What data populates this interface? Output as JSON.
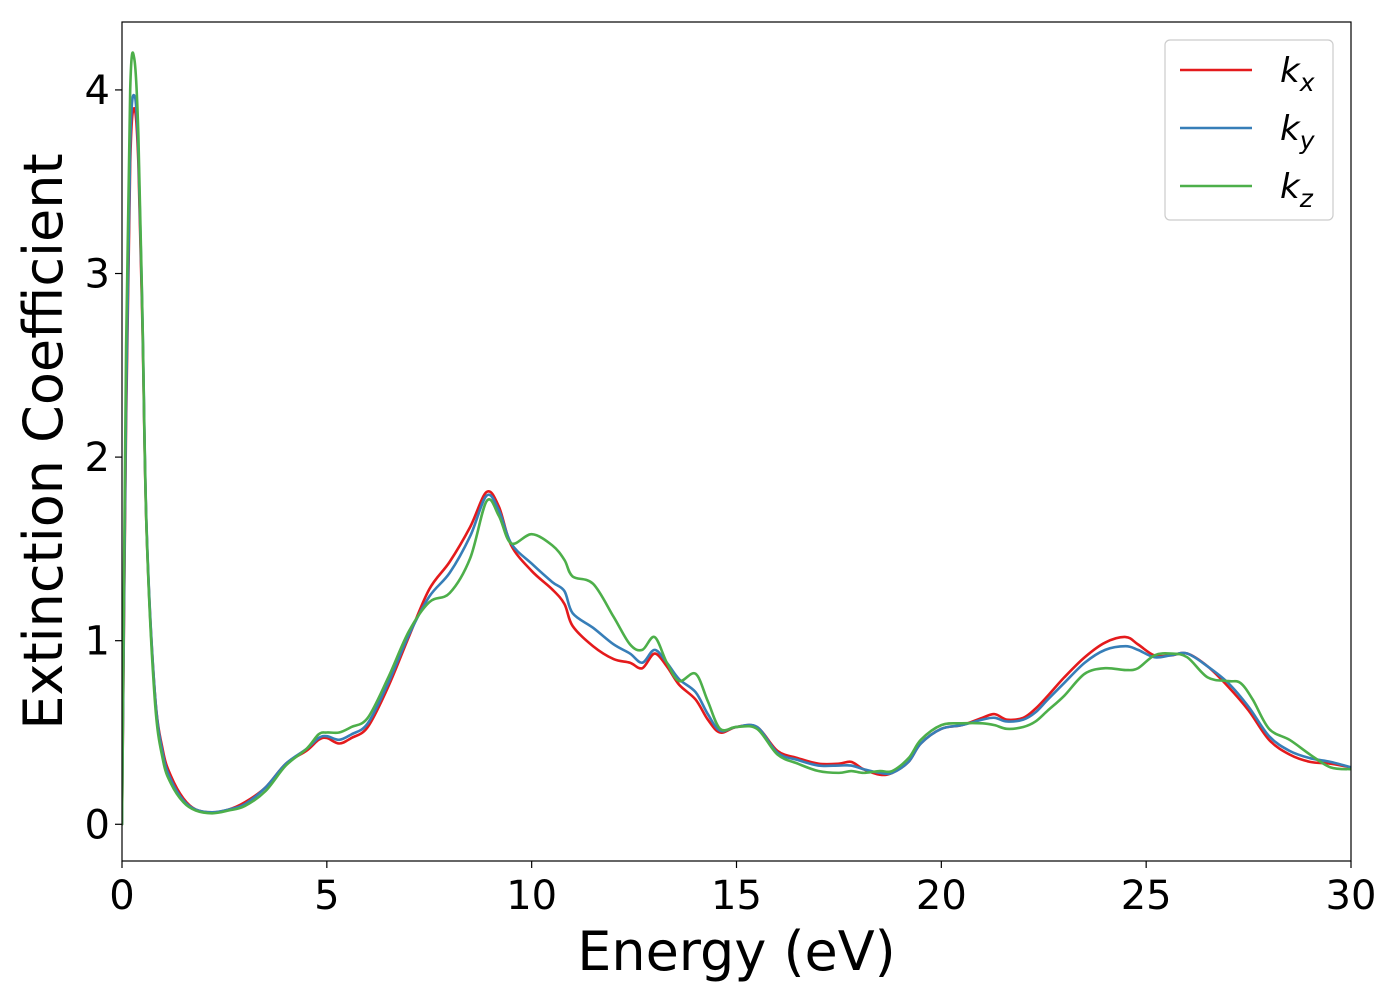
{
  "chart_data": {
    "type": "line",
    "xlabel": "Energy (eV)",
    "ylabel": "Extinction Coefficient",
    "xlim": [
      0,
      30
    ],
    "ylim": [
      -0.2,
      4.37
    ],
    "xticks": [
      0,
      5,
      10,
      15,
      20,
      25,
      30
    ],
    "yticks": [
      0,
      1,
      2,
      3,
      4
    ],
    "grid": false,
    "legend_position": "top-right",
    "series": [
      {
        "name": "k_x",
        "label_base": "k",
        "label_sub": "x",
        "color": "#e41a1c",
        "points": [
          [
            0,
            0
          ],
          [
            0.1,
            2.2
          ],
          [
            0.2,
            3.6
          ],
          [
            0.3,
            3.9
          ],
          [
            0.4,
            3.6
          ],
          [
            0.5,
            2.7
          ],
          [
            0.6,
            1.6
          ],
          [
            0.8,
            0.72
          ],
          [
            1.0,
            0.4
          ],
          [
            1.2,
            0.26
          ],
          [
            1.5,
            0.14
          ],
          [
            1.8,
            0.08
          ],
          [
            2.2,
            0.065
          ],
          [
            2.6,
            0.08
          ],
          [
            3.0,
            0.12
          ],
          [
            3.5,
            0.2
          ],
          [
            4.0,
            0.33
          ],
          [
            4.5,
            0.4
          ],
          [
            4.8,
            0.46
          ],
          [
            5.0,
            0.47
          ],
          [
            5.3,
            0.44
          ],
          [
            5.6,
            0.47
          ],
          [
            6.0,
            0.53
          ],
          [
            6.5,
            0.75
          ],
          [
            7.0,
            1.02
          ],
          [
            7.5,
            1.28
          ],
          [
            8.0,
            1.43
          ],
          [
            8.5,
            1.62
          ],
          [
            8.9,
            1.81
          ],
          [
            9.2,
            1.73
          ],
          [
            9.5,
            1.52
          ],
          [
            10.0,
            1.38
          ],
          [
            10.5,
            1.28
          ],
          [
            10.8,
            1.2
          ],
          [
            11.0,
            1.08
          ],
          [
            11.5,
            0.97
          ],
          [
            12.0,
            0.9
          ],
          [
            12.4,
            0.88
          ],
          [
            12.7,
            0.85
          ],
          [
            13.0,
            0.93
          ],
          [
            13.3,
            0.86
          ],
          [
            13.6,
            0.76
          ],
          [
            14.0,
            0.68
          ],
          [
            14.3,
            0.57
          ],
          [
            14.6,
            0.5
          ],
          [
            15.0,
            0.53
          ],
          [
            15.5,
            0.53
          ],
          [
            16.0,
            0.4
          ],
          [
            16.5,
            0.36
          ],
          [
            17.0,
            0.33
          ],
          [
            17.5,
            0.33
          ],
          [
            17.8,
            0.34
          ],
          [
            18.1,
            0.3
          ],
          [
            18.5,
            0.27
          ],
          [
            18.8,
            0.28
          ],
          [
            19.2,
            0.34
          ],
          [
            19.5,
            0.44
          ],
          [
            20.0,
            0.52
          ],
          [
            20.5,
            0.54
          ],
          [
            21.0,
            0.58
          ],
          [
            21.3,
            0.6
          ],
          [
            21.6,
            0.57
          ],
          [
            22.0,
            0.58
          ],
          [
            22.3,
            0.63
          ],
          [
            22.6,
            0.7
          ],
          [
            23.0,
            0.8
          ],
          [
            23.5,
            0.91
          ],
          [
            24.0,
            0.99
          ],
          [
            24.5,
            1.02
          ],
          [
            24.8,
            0.98
          ],
          [
            25.2,
            0.92
          ],
          [
            25.6,
            0.92
          ],
          [
            26.0,
            0.93
          ],
          [
            26.5,
            0.86
          ],
          [
            27.0,
            0.75
          ],
          [
            27.5,
            0.62
          ],
          [
            28.0,
            0.46
          ],
          [
            28.5,
            0.38
          ],
          [
            29.0,
            0.34
          ],
          [
            29.5,
            0.33
          ],
          [
            30.0,
            0.31
          ]
        ]
      },
      {
        "name": "k_y",
        "label_base": "k",
        "label_sub": "y",
        "color": "#377eb8",
        "points": [
          [
            0,
            0
          ],
          [
            0.1,
            2.3
          ],
          [
            0.2,
            3.7
          ],
          [
            0.3,
            3.97
          ],
          [
            0.4,
            3.66
          ],
          [
            0.5,
            2.75
          ],
          [
            0.6,
            1.62
          ],
          [
            0.8,
            0.72
          ],
          [
            1.0,
            0.38
          ],
          [
            1.2,
            0.24
          ],
          [
            1.5,
            0.13
          ],
          [
            1.8,
            0.08
          ],
          [
            2.2,
            0.065
          ],
          [
            2.6,
            0.08
          ],
          [
            3.0,
            0.11
          ],
          [
            3.5,
            0.2
          ],
          [
            4.0,
            0.33
          ],
          [
            4.5,
            0.41
          ],
          [
            4.8,
            0.47
          ],
          [
            5.0,
            0.48
          ],
          [
            5.3,
            0.46
          ],
          [
            5.6,
            0.49
          ],
          [
            6.0,
            0.55
          ],
          [
            6.5,
            0.77
          ],
          [
            7.0,
            1.03
          ],
          [
            7.5,
            1.24
          ],
          [
            8.0,
            1.37
          ],
          [
            8.5,
            1.57
          ],
          [
            8.9,
            1.79
          ],
          [
            9.2,
            1.71
          ],
          [
            9.5,
            1.53
          ],
          [
            10.0,
            1.42
          ],
          [
            10.5,
            1.32
          ],
          [
            10.8,
            1.27
          ],
          [
            11.0,
            1.15
          ],
          [
            11.5,
            1.07
          ],
          [
            12.0,
            0.98
          ],
          [
            12.4,
            0.93
          ],
          [
            12.7,
            0.88
          ],
          [
            13.0,
            0.95
          ],
          [
            13.3,
            0.88
          ],
          [
            13.6,
            0.79
          ],
          [
            14.0,
            0.72
          ],
          [
            14.3,
            0.6
          ],
          [
            14.6,
            0.51
          ],
          [
            15.0,
            0.53
          ],
          [
            15.5,
            0.53
          ],
          [
            16.0,
            0.39
          ],
          [
            16.5,
            0.35
          ],
          [
            17.0,
            0.32
          ],
          [
            17.5,
            0.32
          ],
          [
            17.8,
            0.32
          ],
          [
            18.1,
            0.3
          ],
          [
            18.5,
            0.28
          ],
          [
            18.8,
            0.28
          ],
          [
            19.2,
            0.34
          ],
          [
            19.5,
            0.44
          ],
          [
            20.0,
            0.52
          ],
          [
            20.5,
            0.54
          ],
          [
            21.0,
            0.57
          ],
          [
            21.3,
            0.58
          ],
          [
            21.6,
            0.56
          ],
          [
            22.0,
            0.57
          ],
          [
            22.3,
            0.61
          ],
          [
            22.6,
            0.68
          ],
          [
            23.0,
            0.77
          ],
          [
            23.5,
            0.88
          ],
          [
            24.0,
            0.95
          ],
          [
            24.5,
            0.97
          ],
          [
            24.8,
            0.95
          ],
          [
            25.2,
            0.91
          ],
          [
            25.6,
            0.92
          ],
          [
            26.0,
            0.93
          ],
          [
            26.5,
            0.86
          ],
          [
            27.0,
            0.77
          ],
          [
            27.5,
            0.64
          ],
          [
            28.0,
            0.48
          ],
          [
            28.5,
            0.4
          ],
          [
            29.0,
            0.36
          ],
          [
            29.5,
            0.34
          ],
          [
            30.0,
            0.31
          ]
        ]
      },
      {
        "name": "k_z",
        "label_base": "k",
        "label_sub": "z",
        "color": "#4daf4a",
        "points": [
          [
            0,
            0
          ],
          [
            0.1,
            2.6
          ],
          [
            0.2,
            4.0
          ],
          [
            0.3,
            4.17
          ],
          [
            0.4,
            3.75
          ],
          [
            0.5,
            2.75
          ],
          [
            0.6,
            1.6
          ],
          [
            0.8,
            0.68
          ],
          [
            1.0,
            0.35
          ],
          [
            1.2,
            0.22
          ],
          [
            1.5,
            0.12
          ],
          [
            1.8,
            0.075
          ],
          [
            2.2,
            0.06
          ],
          [
            2.6,
            0.075
          ],
          [
            3.0,
            0.1
          ],
          [
            3.5,
            0.18
          ],
          [
            4.0,
            0.32
          ],
          [
            4.5,
            0.41
          ],
          [
            4.8,
            0.49
          ],
          [
            5.0,
            0.5
          ],
          [
            5.3,
            0.5
          ],
          [
            5.6,
            0.53
          ],
          [
            6.0,
            0.58
          ],
          [
            6.5,
            0.8
          ],
          [
            7.0,
            1.05
          ],
          [
            7.5,
            1.21
          ],
          [
            8.0,
            1.26
          ],
          [
            8.5,
            1.45
          ],
          [
            8.9,
            1.76
          ],
          [
            9.2,
            1.68
          ],
          [
            9.5,
            1.53
          ],
          [
            10.0,
            1.58
          ],
          [
            10.5,
            1.52
          ],
          [
            10.8,
            1.44
          ],
          [
            11.0,
            1.35
          ],
          [
            11.5,
            1.31
          ],
          [
            12.0,
            1.13
          ],
          [
            12.4,
            0.98
          ],
          [
            12.7,
            0.95
          ],
          [
            13.0,
            1.02
          ],
          [
            13.3,
            0.88
          ],
          [
            13.6,
            0.78
          ],
          [
            14.0,
            0.82
          ],
          [
            14.3,
            0.67
          ],
          [
            14.6,
            0.52
          ],
          [
            15.0,
            0.53
          ],
          [
            15.5,
            0.52
          ],
          [
            16.0,
            0.38
          ],
          [
            16.5,
            0.33
          ],
          [
            17.0,
            0.29
          ],
          [
            17.5,
            0.28
          ],
          [
            17.8,
            0.29
          ],
          [
            18.1,
            0.28
          ],
          [
            18.5,
            0.29
          ],
          [
            18.8,
            0.29
          ],
          [
            19.2,
            0.36
          ],
          [
            19.5,
            0.46
          ],
          [
            20.0,
            0.54
          ],
          [
            20.5,
            0.55
          ],
          [
            21.0,
            0.55
          ],
          [
            21.3,
            0.54
          ],
          [
            21.6,
            0.52
          ],
          [
            22.0,
            0.53
          ],
          [
            22.3,
            0.56
          ],
          [
            22.6,
            0.62
          ],
          [
            23.0,
            0.7
          ],
          [
            23.5,
            0.82
          ],
          [
            24.0,
            0.85
          ],
          [
            24.5,
            0.84
          ],
          [
            24.8,
            0.85
          ],
          [
            25.2,
            0.92
          ],
          [
            25.6,
            0.93
          ],
          [
            26.0,
            0.91
          ],
          [
            26.5,
            0.8
          ],
          [
            27.0,
            0.78
          ],
          [
            27.3,
            0.77
          ],
          [
            27.6,
            0.68
          ],
          [
            28.0,
            0.52
          ],
          [
            28.5,
            0.46
          ],
          [
            29.0,
            0.38
          ],
          [
            29.5,
            0.31
          ],
          [
            30.0,
            0.3
          ]
        ]
      }
    ]
  }
}
